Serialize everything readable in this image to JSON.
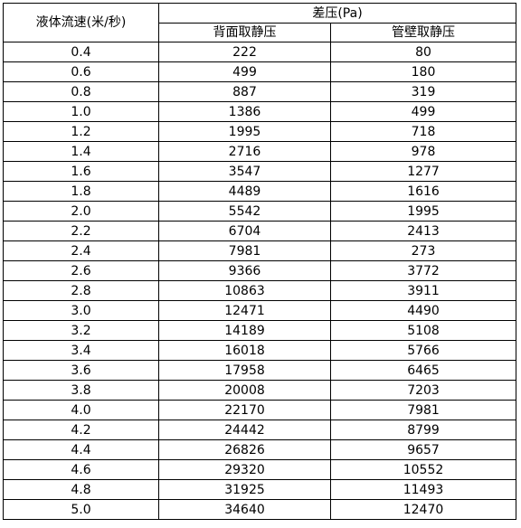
{
  "headers": {
    "velocity": "液体流速(米/秒)",
    "pressure_group": "差压(Pa)",
    "back_tap": "背面取静压",
    "wall_tap": "管壁取静压"
  },
  "rows": [
    {
      "v": "0.4",
      "back": "222",
      "wall": "80"
    },
    {
      "v": "0.6",
      "back": "499",
      "wall": "180"
    },
    {
      "v": "0.8",
      "back": "887",
      "wall": "319"
    },
    {
      "v": "1.0",
      "back": "1386",
      "wall": "499"
    },
    {
      "v": "1.2",
      "back": "1995",
      "wall": "718"
    },
    {
      "v": "1.4",
      "back": "2716",
      "wall": "978"
    },
    {
      "v": "1.6",
      "back": "3547",
      "wall": "1277"
    },
    {
      "v": "1.8",
      "back": "4489",
      "wall": "1616"
    },
    {
      "v": "2.0",
      "back": "5542",
      "wall": "1995"
    },
    {
      "v": "2.2",
      "back": "6704",
      "wall": "2413"
    },
    {
      "v": "2.4",
      "back": "7981",
      "wall": "273"
    },
    {
      "v": "2.6",
      "back": "9366",
      "wall": "3772"
    },
    {
      "v": "2.8",
      "back": "10863",
      "wall": "3911"
    },
    {
      "v": "3.0",
      "back": "12471",
      "wall": "4490"
    },
    {
      "v": "3.2",
      "back": "14189",
      "wall": "5108"
    },
    {
      "v": "3.4",
      "back": "16018",
      "wall": "5766"
    },
    {
      "v": "3.6",
      "back": "17958",
      "wall": "6465"
    },
    {
      "v": "3.8",
      "back": "20008",
      "wall": "7203"
    },
    {
      "v": "4.0",
      "back": "22170",
      "wall": "7981"
    },
    {
      "v": "4.2",
      "back": "24442",
      "wall": "8799"
    },
    {
      "v": "4.4",
      "back": "26826",
      "wall": "9657"
    },
    {
      "v": "4.6",
      "back": "29320",
      "wall": "10552"
    },
    {
      "v": "4.8",
      "back": "31925",
      "wall": "11493"
    },
    {
      "v": "5.0",
      "back": "34640",
      "wall": "12470"
    }
  ]
}
